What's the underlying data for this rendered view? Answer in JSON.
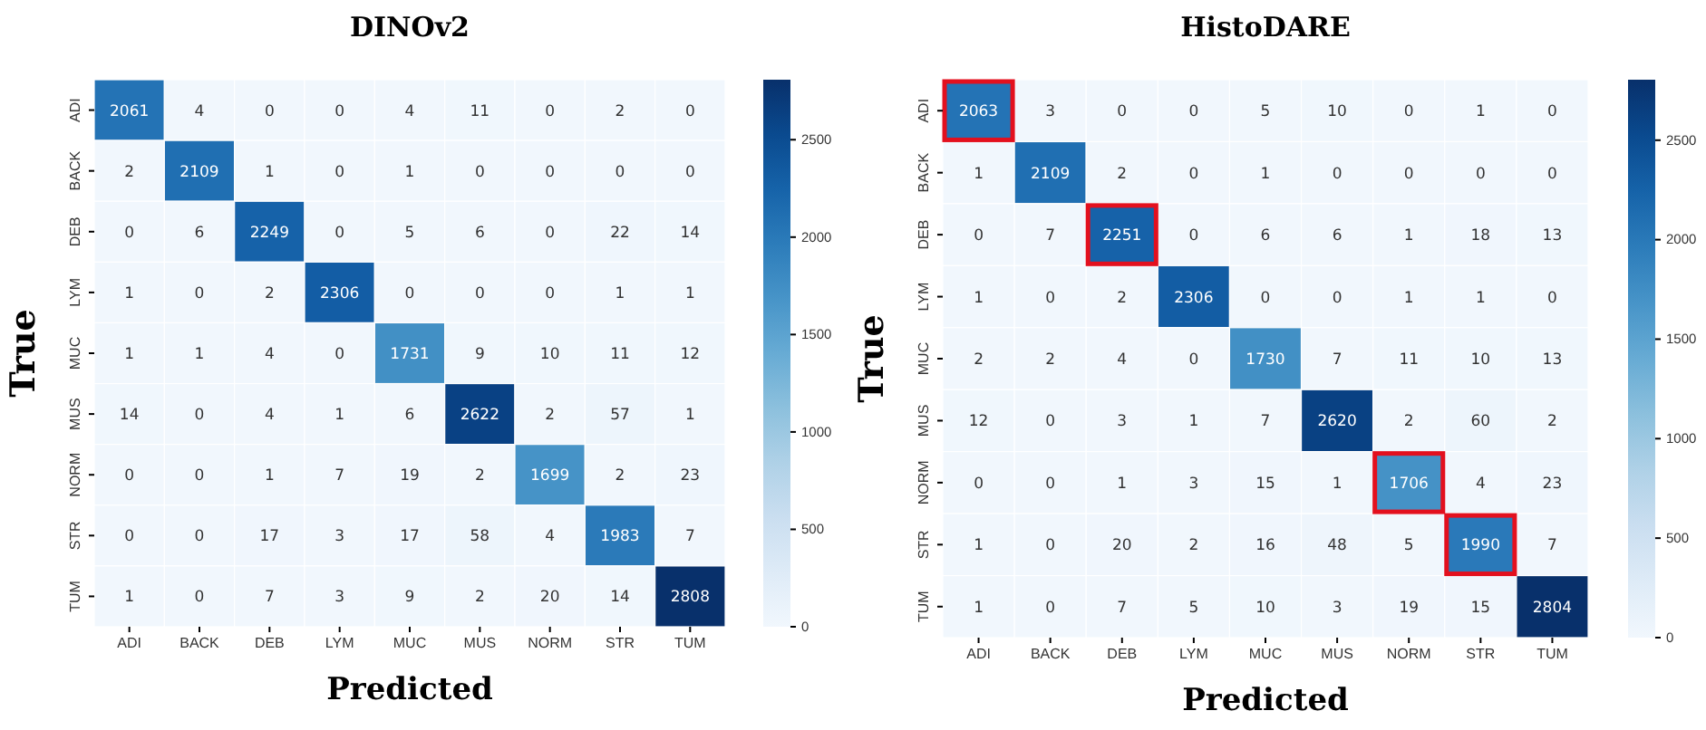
{
  "chart_data": [
    {
      "type": "heatmap",
      "title": "DINOv2",
      "xlabel": "Predicted",
      "ylabel": "True",
      "categories": [
        "ADI",
        "BACK",
        "DEB",
        "LYM",
        "MUC",
        "MUS",
        "NORM",
        "STR",
        "TUM"
      ],
      "y_categories": [
        "ADI",
        "BACK",
        "DEB",
        "LYM",
        "MUC",
        "MUS",
        "NORM",
        "STR",
        "TUM"
      ],
      "cells": [
        [
          2061,
          4,
          0,
          0,
          4,
          11,
          0,
          2,
          0
        ],
        [
          2,
          2109,
          1,
          0,
          1,
          0,
          0,
          0,
          0
        ],
        [
          0,
          6,
          2249,
          0,
          5,
          6,
          0,
          22,
          14
        ],
        [
          1,
          0,
          2,
          2306,
          0,
          0,
          0,
          1,
          1
        ],
        [
          1,
          1,
          4,
          0,
          1731,
          9,
          10,
          11,
          12
        ],
        [
          14,
          0,
          4,
          1,
          6,
          2622,
          2,
          57,
          1
        ],
        [
          0,
          0,
          1,
          7,
          19,
          2,
          1699,
          2,
          23
        ],
        [
          0,
          0,
          17,
          3,
          17,
          58,
          4,
          1983,
          7
        ],
        [
          1,
          0,
          7,
          3,
          9,
          2,
          20,
          14,
          2808
        ]
      ],
      "clim": [
        0,
        2808
      ],
      "cticks": [
        0,
        500,
        1000,
        1500,
        2000,
        2500
      ],
      "data_labels": true
    },
    {
      "type": "heatmap",
      "title": "HistoDARE",
      "xlabel": "Predicted",
      "ylabel": "True",
      "categories": [
        "ADI",
        "BACK",
        "DEB",
        "LYM",
        "MUC",
        "MUS",
        "NORM",
        "STR",
        "TUM"
      ],
      "y_categories": [
        "ADI",
        "BACK",
        "DEB",
        "LYM",
        "MUC",
        "MUS",
        "NORM",
        "STR",
        "TUM"
      ],
      "cells": [
        [
          2063,
          3,
          0,
          0,
          5,
          10,
          0,
          1,
          0
        ],
        [
          1,
          2109,
          2,
          0,
          1,
          0,
          0,
          0,
          0
        ],
        [
          0,
          7,
          2251,
          0,
          6,
          6,
          1,
          18,
          13
        ],
        [
          1,
          0,
          2,
          2306,
          0,
          0,
          1,
          1,
          0
        ],
        [
          2,
          2,
          4,
          0,
          1730,
          7,
          11,
          10,
          13
        ],
        [
          12,
          0,
          3,
          1,
          7,
          2620,
          2,
          60,
          2
        ],
        [
          0,
          0,
          1,
          3,
          15,
          1,
          1706,
          4,
          23
        ],
        [
          1,
          0,
          20,
          2,
          16,
          48,
          5,
          1990,
          7
        ],
        [
          1,
          0,
          7,
          5,
          10,
          3,
          19,
          15,
          2804
        ]
      ],
      "clim": [
        0,
        2804
      ],
      "cticks": [
        0,
        500,
        1000,
        1500,
        2000,
        2500
      ],
      "data_labels": true
    }
  ]
}
